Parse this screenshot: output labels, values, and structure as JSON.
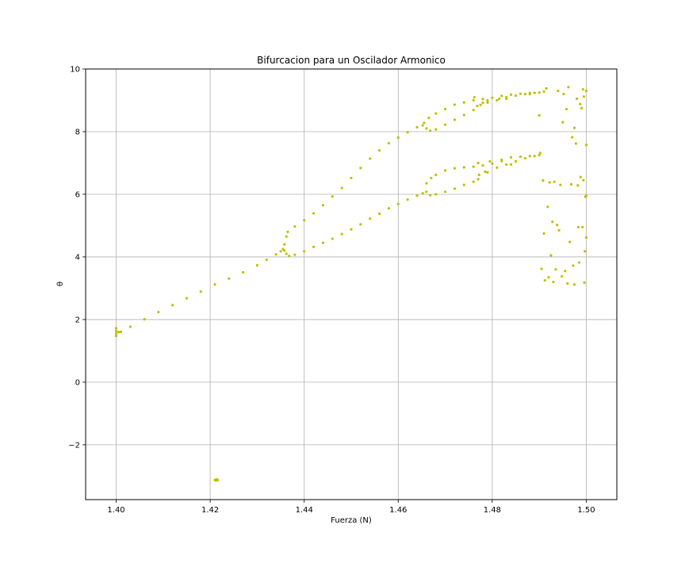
{
  "chart_data": {
    "type": "scatter",
    "title": "Bifurcacion para un Oscilador Armonico",
    "xlabel": "Fuerza (N)",
    "ylabel": "θ",
    "xlim": [
      1.3935,
      1.5065
    ],
    "ylim": [
      -3.75,
      10.0
    ],
    "xticks": [
      1.4,
      1.42,
      1.44,
      1.46,
      1.48,
      1.5
    ],
    "xtick_labels": [
      "1.40",
      "1.42",
      "1.44",
      "1.46",
      "1.48",
      "1.50"
    ],
    "yticks": [
      -2,
      0,
      2,
      4,
      6,
      8,
      10
    ],
    "ytick_labels": [
      "−2",
      "0",
      "2",
      "4",
      "6",
      "8",
      "10"
    ],
    "grid": true,
    "marker_color": "#bfbf00",
    "series": [
      {
        "values": [
          [
            1.4,
            1.72
          ],
          [
            1.4,
            1.63
          ],
          [
            1.4,
            1.55
          ],
          [
            1.4,
            1.48
          ],
          [
            1.4005,
            1.6
          ],
          [
            1.401,
            1.61
          ],
          [
            1.403,
            1.77
          ],
          [
            1.406,
            2.01
          ],
          [
            1.409,
            2.24
          ],
          [
            1.412,
            2.46
          ],
          [
            1.415,
            2.68
          ],
          [
            1.418,
            2.89
          ],
          [
            1.421,
            3.12
          ],
          [
            1.424,
            3.31
          ],
          [
            1.427,
            3.51
          ],
          [
            1.43,
            3.73
          ],
          [
            1.432,
            3.91
          ],
          [
            1.434,
            4.08
          ],
          [
            1.435,
            4.18
          ],
          [
            1.4355,
            4.25
          ],
          [
            1.4358,
            4.4
          ],
          [
            1.4362,
            4.65
          ],
          [
            1.4365,
            4.8
          ],
          [
            1.438,
            4.97
          ],
          [
            1.44,
            5.17
          ],
          [
            1.442,
            5.39
          ],
          [
            1.444,
            5.65
          ],
          [
            1.446,
            5.93
          ],
          [
            1.448,
            6.2
          ],
          [
            1.45,
            6.52
          ],
          [
            1.452,
            6.84
          ],
          [
            1.454,
            7.14
          ],
          [
            1.456,
            7.4
          ],
          [
            1.458,
            7.63
          ],
          [
            1.46,
            7.81
          ],
          [
            1.462,
            7.98
          ],
          [
            1.464,
            8.14
          ],
          [
            1.4655,
            8.28
          ],
          [
            1.4665,
            8.44
          ],
          [
            1.468,
            8.58
          ],
          [
            1.47,
            8.72
          ],
          [
            1.472,
            8.86
          ],
          [
            1.474,
            8.93
          ],
          [
            1.476,
            9.0
          ],
          [
            1.478,
            9.04
          ],
          [
            1.48,
            9.08
          ],
          [
            1.482,
            9.14
          ],
          [
            1.484,
            9.18
          ],
          [
            1.486,
            9.21
          ],
          [
            1.488,
            9.23
          ],
          [
            1.49,
            9.25
          ],
          [
            1.491,
            9.28
          ],
          [
            1.4358,
            4.2
          ],
          [
            1.4362,
            4.1
          ],
          [
            1.4368,
            4.03
          ],
          [
            1.438,
            4.07
          ],
          [
            1.44,
            4.18
          ],
          [
            1.442,
            4.32
          ],
          [
            1.444,
            4.45
          ],
          [
            1.446,
            4.58
          ],
          [
            1.448,
            4.73
          ],
          [
            1.45,
            4.88
          ],
          [
            1.452,
            5.04
          ],
          [
            1.454,
            5.22
          ],
          [
            1.456,
            5.38
          ],
          [
            1.458,
            5.55
          ],
          [
            1.46,
            5.69
          ],
          [
            1.462,
            5.83
          ],
          [
            1.464,
            5.96
          ],
          [
            1.4652,
            6.03
          ],
          [
            1.466,
            6.08
          ],
          [
            1.4668,
            5.97
          ],
          [
            1.468,
            6.0
          ],
          [
            1.47,
            6.08
          ],
          [
            1.472,
            6.18
          ],
          [
            1.474,
            6.3
          ],
          [
            1.476,
            6.4
          ],
          [
            1.477,
            6.48
          ],
          [
            1.479,
            6.7
          ],
          [
            1.481,
            6.85
          ],
          [
            1.483,
            6.95
          ],
          [
            1.485,
            7.05
          ],
          [
            1.487,
            7.15
          ],
          [
            1.489,
            7.22
          ],
          [
            1.4652,
            8.2
          ],
          [
            1.466,
            8.1
          ],
          [
            1.4668,
            8.03
          ],
          [
            1.468,
            8.07
          ],
          [
            1.47,
            8.22
          ],
          [
            1.472,
            8.38
          ],
          [
            1.474,
            8.53
          ],
          [
            1.476,
            8.69
          ],
          [
            1.4775,
            8.85
          ],
          [
            1.479,
            9.0
          ],
          [
            1.481,
            9.0
          ],
          [
            1.483,
            9.05
          ],
          [
            1.485,
            9.15
          ],
          [
            1.487,
            9.2
          ],
          [
            1.489,
            9.24
          ],
          [
            1.466,
            6.35
          ],
          [
            1.467,
            6.52
          ],
          [
            1.468,
            6.62
          ],
          [
            1.47,
            6.76
          ],
          [
            1.472,
            6.83
          ],
          [
            1.474,
            6.86
          ],
          [
            1.476,
            6.88
          ],
          [
            1.478,
            6.92
          ],
          [
            1.48,
            6.98
          ],
          [
            1.482,
            7.06
          ],
          [
            1.484,
            7.18
          ],
          [
            1.486,
            7.2
          ],
          [
            1.488,
            7.22
          ],
          [
            1.49,
            7.25
          ],
          [
            1.4762,
            9.1
          ],
          [
            1.4768,
            8.82
          ],
          [
            1.477,
            7.0
          ],
          [
            1.4772,
            6.62
          ],
          [
            1.478,
            8.92
          ],
          [
            1.4785,
            6.72
          ],
          [
            1.479,
            8.93
          ],
          [
            1.4795,
            7.05
          ],
          [
            1.4815,
            9.05
          ],
          [
            1.482,
            7.1
          ],
          [
            1.483,
            9.1
          ],
          [
            1.484,
            6.95
          ],
          [
            1.488,
            9.2
          ],
          [
            1.49,
            8.52
          ],
          [
            1.4902,
            7.32
          ],
          [
            1.4905,
            3.62
          ],
          [
            1.4908,
            6.44
          ],
          [
            1.491,
            4.75
          ],
          [
            1.4912,
            3.25
          ],
          [
            1.4915,
            9.38
          ],
          [
            1.4918,
            5.6
          ],
          [
            1.492,
            3.35
          ],
          [
            1.4922,
            6.38
          ],
          [
            1.4925,
            4.05
          ],
          [
            1.4928,
            5.12
          ],
          [
            1.493,
            3.2
          ],
          [
            1.4932,
            6.4
          ],
          [
            1.4935,
            3.6
          ],
          [
            1.4938,
            5.02
          ],
          [
            1.494,
            9.3
          ],
          [
            1.4942,
            4.85
          ],
          [
            1.4945,
            6.3
          ],
          [
            1.4948,
            3.38
          ],
          [
            1.495,
            8.3
          ],
          [
            1.4952,
            9.2
          ],
          [
            1.4955,
            3.55
          ],
          [
            1.4958,
            8.72
          ],
          [
            1.496,
            3.15
          ],
          [
            1.4962,
            9.42
          ],
          [
            1.4965,
            4.48
          ],
          [
            1.4968,
            6.32
          ],
          [
            1.497,
            7.82
          ],
          [
            1.4972,
            3.72
          ],
          [
            1.4975,
            8.12
          ],
          [
            1.4978,
            7.62
          ],
          [
            1.498,
            9.05
          ],
          [
            1.4982,
            6.28
          ],
          [
            1.4985,
            3.82
          ],
          [
            1.4988,
            6.55
          ],
          [
            1.499,
            8.75
          ],
          [
            1.4992,
            4.95
          ],
          [
            1.4994,
            6.45
          ],
          [
            1.4995,
            9.12
          ],
          [
            1.4996,
            3.18
          ],
          [
            1.4998,
            5.92
          ],
          [
            1.5,
            9.3
          ],
          [
            1.5,
            7.58
          ],
          [
            1.5,
            4.62
          ],
          [
            1.5,
            5.95
          ],
          [
            1.4997,
            4.18
          ],
          [
            1.4993,
            9.35
          ],
          [
            1.4987,
            8.88
          ],
          [
            1.4983,
            4.95
          ],
          [
            1.4975,
            3.12
          ],
          [
            1.421,
            -3.12
          ],
          [
            1.4212,
            -3.14
          ],
          [
            1.4214,
            -3.1
          ],
          [
            1.4216,
            -3.13
          ]
        ]
      }
    ]
  }
}
